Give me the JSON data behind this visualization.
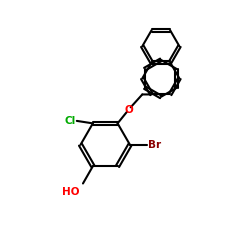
{
  "bg_color": "#ffffff",
  "bond_color": "#000000",
  "line_width": 1.5,
  "font_size_label": 7.5,
  "Cl_color": "#00aa00",
  "Br_color": "#8b0000",
  "O_color": "#ff0000",
  "HO_color": "#ff0000",
  "fig_size": [
    2.5,
    2.5
  ],
  "dpi": 100,
  "xlim": [
    0,
    10
  ],
  "ylim": [
    0,
    10
  ]
}
